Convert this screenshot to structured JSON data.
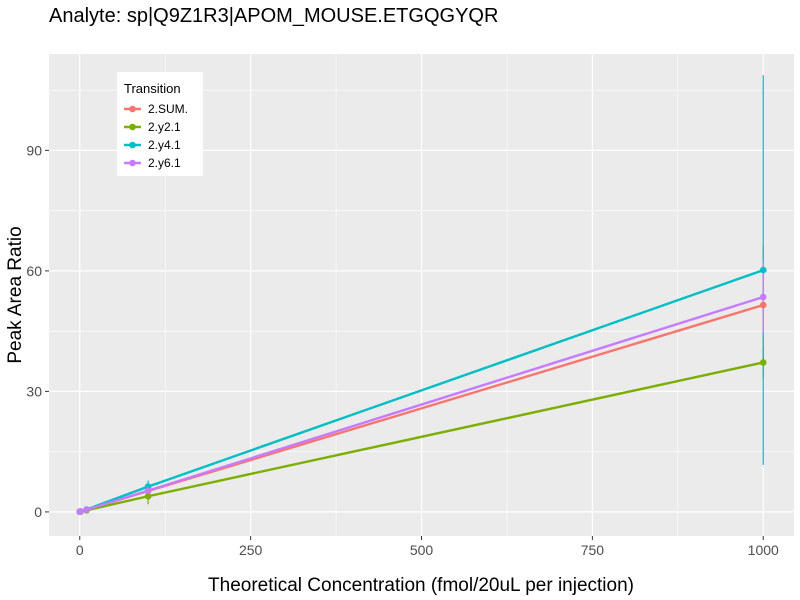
{
  "chart_data": {
    "type": "line",
    "title": "Analyte: sp|Q9Z1R3|APOM_MOUSE.ETGQGYQR",
    "xlabel": "Theoretical Concentration (fmol/20uL per injection)",
    "ylabel": "Peak Area Ratio",
    "xlim": [
      -45,
      1045
    ],
    "ylim": [
      -6,
      114
    ],
    "xticks": [
      0,
      250,
      500,
      750,
      1000
    ],
    "xtick_labels": [
      "0",
      "250",
      "500",
      "750",
      "1000"
    ],
    "yticks": [
      0,
      30,
      60,
      90
    ],
    "ytick_labels": [
      "0",
      "30",
      "60",
      "90"
    ],
    "grid": true,
    "legend": {
      "title": "Transition",
      "position": "top-left"
    },
    "x": [
      0,
      1,
      10,
      100,
      1000
    ],
    "series": [
      {
        "name": "2.SUM.",
        "color": "#F8766D",
        "values": [
          0.05,
          0.1,
          0.55,
          5.2,
          51.5
        ],
        "errors": [
          0.02,
          0.05,
          0.1,
          1.0,
          15.0
        ]
      },
      {
        "name": "2.y2.1",
        "color": "#7CAE00",
        "values": [
          0.03,
          0.07,
          0.4,
          3.9,
          37.2
        ],
        "errors": [
          0.02,
          0.04,
          0.1,
          2.0,
          4.0
        ]
      },
      {
        "name": "2.y4.1",
        "color": "#00BFC4",
        "values": [
          0.06,
          0.12,
          0.6,
          6.3,
          60.2
        ],
        "errors": [
          0.03,
          0.05,
          0.1,
          1.5,
          48.5
        ]
      },
      {
        "name": "2.y6.1",
        "color": "#C77CFF",
        "values": [
          0.05,
          0.1,
          0.55,
          5.3,
          53.5
        ],
        "errors": [
          0.02,
          0.05,
          0.1,
          1.0,
          9.0
        ]
      }
    ]
  }
}
